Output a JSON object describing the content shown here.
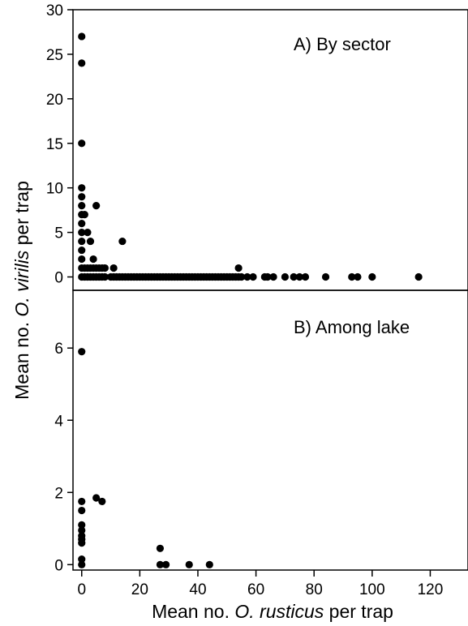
{
  "figure": {
    "ylabel_parts": [
      "Mean no. ",
      "O. virilis",
      " per trap"
    ],
    "xlabel_parts": [
      "Mean no. ",
      "O. rusticus",
      " per trap"
    ]
  },
  "chart_data": [
    {
      "type": "scatter",
      "panel": "A",
      "title": "A) By sector",
      "xlabel": "Mean no. O. rusticus per trap",
      "ylabel": "Mean no. O. virilis per trap",
      "xlim": [
        -3,
        133
      ],
      "ylim": [
        -1.5,
        30
      ],
      "xticks": [
        0,
        20,
        40,
        60,
        80,
        100,
        120
      ],
      "yticks": [
        0,
        5,
        10,
        15,
        20,
        25,
        30
      ],
      "ytick_labels": [
        "0",
        "5",
        "10",
        "15",
        "20",
        "25",
        "30"
      ],
      "points": [
        [
          0,
          27
        ],
        [
          0,
          24
        ],
        [
          0,
          15
        ],
        [
          0,
          10
        ],
        [
          0,
          9
        ],
        [
          0,
          8
        ],
        [
          0,
          7
        ],
        [
          0,
          6
        ],
        [
          0,
          5
        ],
        [
          0,
          4
        ],
        [
          0,
          3
        ],
        [
          0,
          2
        ],
        [
          0,
          1
        ],
        [
          0,
          0
        ],
        [
          1,
          7
        ],
        [
          1,
          1
        ],
        [
          1,
          0
        ],
        [
          2,
          5
        ],
        [
          2,
          1
        ],
        [
          2,
          0
        ],
        [
          3,
          4
        ],
        [
          3,
          1
        ],
        [
          3,
          0
        ],
        [
          4,
          2
        ],
        [
          4,
          1
        ],
        [
          4,
          0
        ],
        [
          5,
          8
        ],
        [
          5,
          1
        ],
        [
          5,
          0
        ],
        [
          6,
          1
        ],
        [
          6,
          0
        ],
        [
          7,
          1
        ],
        [
          7,
          0
        ],
        [
          8,
          1
        ],
        [
          8,
          0
        ],
        [
          10,
          0
        ],
        [
          11,
          1
        ],
        [
          11,
          0
        ],
        [
          12,
          0
        ],
        [
          13,
          0
        ],
        [
          14,
          4
        ],
        [
          14,
          0
        ],
        [
          15,
          0
        ],
        [
          16,
          0
        ],
        [
          17,
          0
        ],
        [
          18,
          0
        ],
        [
          19,
          0
        ],
        [
          20,
          0
        ],
        [
          21,
          0
        ],
        [
          22,
          0
        ],
        [
          23,
          0
        ],
        [
          24,
          0
        ],
        [
          25,
          0
        ],
        [
          26,
          0
        ],
        [
          27,
          0
        ],
        [
          28,
          0
        ],
        [
          29,
          0
        ],
        [
          30,
          0
        ],
        [
          31,
          0
        ],
        [
          32,
          0
        ],
        [
          33,
          0
        ],
        [
          34,
          0
        ],
        [
          35,
          0
        ],
        [
          36,
          0
        ],
        [
          37,
          0
        ],
        [
          38,
          0
        ],
        [
          39,
          0
        ],
        [
          40,
          0
        ],
        [
          41,
          0
        ],
        [
          42,
          0
        ],
        [
          43,
          0
        ],
        [
          44,
          0
        ],
        [
          45,
          0
        ],
        [
          46,
          0
        ],
        [
          47,
          0
        ],
        [
          48,
          0
        ],
        [
          49,
          0
        ],
        [
          50,
          0
        ],
        [
          51,
          0
        ],
        [
          52,
          0
        ],
        [
          53,
          0
        ],
        [
          54,
          1
        ],
        [
          54,
          0
        ],
        [
          55,
          0
        ],
        [
          57,
          0
        ],
        [
          59,
          0
        ],
        [
          63,
          0
        ],
        [
          64,
          0
        ],
        [
          66,
          0
        ],
        [
          70,
          0
        ],
        [
          73,
          0
        ],
        [
          75,
          0
        ],
        [
          77,
          0
        ],
        [
          84,
          0
        ],
        [
          93,
          0
        ],
        [
          95,
          0
        ],
        [
          100,
          0
        ],
        [
          116,
          0
        ]
      ]
    },
    {
      "type": "scatter",
      "panel": "B",
      "title": "B) Among lake",
      "xlabel": "Mean no. O. rusticus per trap",
      "ylabel": "Mean no. O. virilis per trap",
      "xlim": [
        -3,
        133
      ],
      "ylim": [
        -0.15,
        7.6
      ],
      "xticks": [
        0,
        20,
        40,
        60,
        80,
        100,
        120
      ],
      "yticks": [
        0,
        2,
        4,
        6
      ],
      "ytick_labels": [
        "0",
        "2",
        "4",
        "6"
      ],
      "points": [
        [
          0,
          5.9
        ],
        [
          0,
          1.75
        ],
        [
          0,
          1.5
        ],
        [
          0,
          1.1
        ],
        [
          0,
          0.95
        ],
        [
          0,
          0.8
        ],
        [
          0,
          0.7
        ],
        [
          0,
          0.6
        ],
        [
          0,
          0.15
        ],
        [
          0,
          0
        ],
        [
          5,
          1.85
        ],
        [
          7,
          1.75
        ],
        [
          27,
          0.45
        ],
        [
          27,
          0
        ],
        [
          29,
          0
        ],
        [
          37,
          0
        ],
        [
          44,
          0
        ]
      ]
    }
  ]
}
